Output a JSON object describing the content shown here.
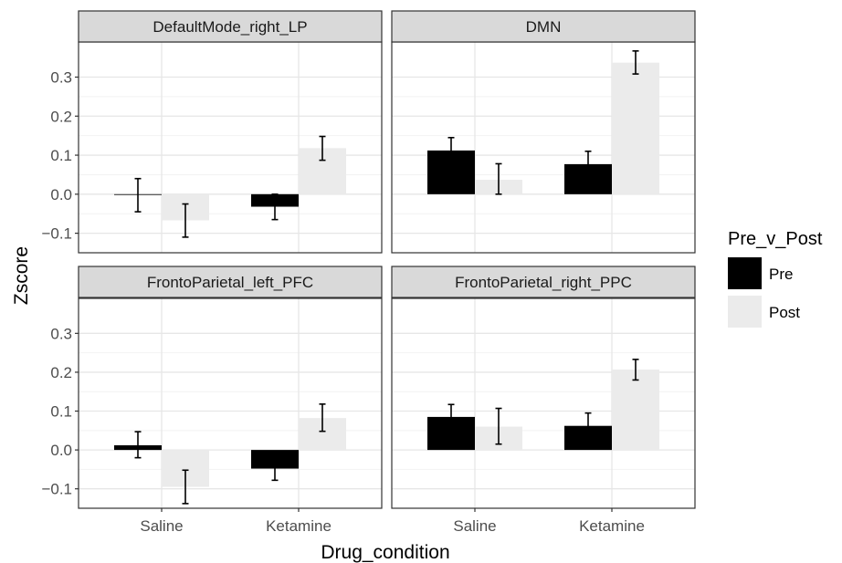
{
  "chart_data": {
    "type": "bar",
    "xlabel": "Drug_condition",
    "ylabel": "Zscore",
    "categories": [
      "Saline",
      "Ketamine"
    ],
    "yticks": [
      -0.1,
      0.0,
      0.1,
      0.2,
      0.3
    ],
    "ytick_labels": [
      "−0.1",
      "0.0",
      "0.1",
      "0.2",
      "0.3"
    ],
    "ylim": [
      -0.15,
      0.39
    ],
    "grid": true,
    "legend": {
      "title": "Pre_v_Post",
      "placement": "right",
      "entries": [
        {
          "name": "Pre",
          "color": "#000000"
        },
        {
          "name": "Post",
          "color": "#ebebeb"
        }
      ]
    },
    "panels": [
      {
        "title": "DefaultMode_right_LP",
        "series": [
          {
            "name": "Pre",
            "values": [
              0.0,
              -0.032
            ],
            "err_low": [
              -0.045,
              -0.065
            ],
            "err_high": [
              0.04,
              0.0
            ]
          },
          {
            "name": "Post",
            "values": [
              -0.067,
              0.118
            ],
            "err_low": [
              -0.11,
              0.087
            ],
            "err_high": [
              -0.025,
              0.148
            ]
          }
        ]
      },
      {
        "title": "DMN",
        "series": [
          {
            "name": "Pre",
            "values": [
              0.112,
              0.077
            ],
            "err_low": [
              0.082,
              0.045
            ],
            "err_high": [
              0.145,
              0.11
            ]
          },
          {
            "name": "Post",
            "values": [
              0.037,
              0.337
            ],
            "err_low": [
              0.0,
              0.308
            ],
            "err_high": [
              0.078,
              0.367
            ]
          }
        ]
      },
      {
        "title": "FrontoParietal_left_PFC",
        "series": [
          {
            "name": "Pre",
            "values": [
              0.012,
              -0.048
            ],
            "err_low": [
              -0.02,
              -0.078
            ],
            "err_high": [
              0.047,
              -0.018
            ]
          },
          {
            "name": "Post",
            "values": [
              -0.095,
              0.082
            ],
            "err_low": [
              -0.138,
              0.048
            ],
            "err_high": [
              -0.052,
              0.118
            ]
          }
        ]
      },
      {
        "title": "FrontoParietal_right_PPC",
        "series": [
          {
            "name": "Pre",
            "values": [
              0.085,
              0.062
            ],
            "err_low": [
              0.055,
              0.032
            ],
            "err_high": [
              0.117,
              0.095
            ]
          },
          {
            "name": "Post",
            "values": [
              0.06,
              0.207
            ],
            "err_low": [
              0.015,
              0.18
            ],
            "err_high": [
              0.107,
              0.233
            ]
          }
        ]
      }
    ]
  }
}
